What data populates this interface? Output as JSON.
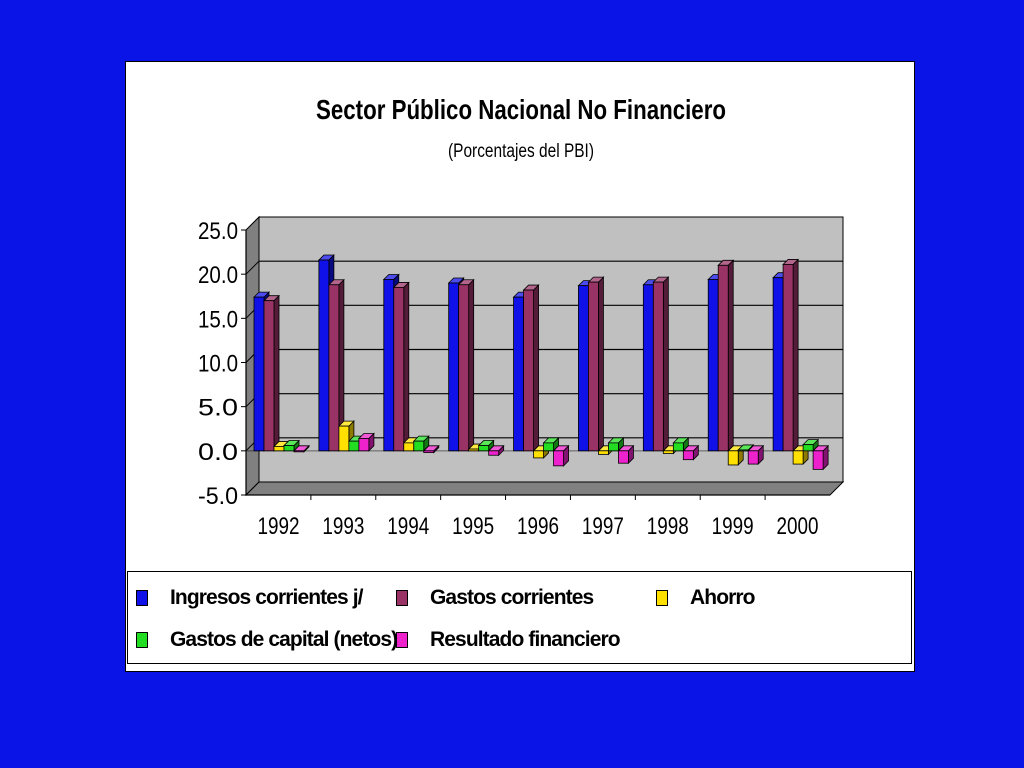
{
  "chart_data": {
    "type": "bar",
    "title": "Sector Público Nacional No Financiero",
    "subtitle": "(Porcentajes del PBI)",
    "categories": [
      "1992",
      "1993",
      "1994",
      "1995",
      "1996",
      "1997",
      "1998",
      "1999",
      "2000"
    ],
    "ylim": [
      -5,
      25
    ],
    "yticks": [
      "25.0",
      "20.0",
      "15.0",
      "10.0",
      "5.0",
      "0.0",
      "-5.0"
    ],
    "grid": true,
    "legend_position": "bottom",
    "series": [
      {
        "name": "Ingresos corrientes j/",
        "color": "#1010e8",
        "values": [
          17.4,
          21.6,
          19.4,
          19.0,
          17.4,
          18.7,
          18.8,
          19.4,
          19.6
        ]
      },
      {
        "name": "Gastos corrientes",
        "color": "#993366",
        "values": [
          17.0,
          18.8,
          18.5,
          18.8,
          18.2,
          19.1,
          19.1,
          21.0,
          21.1
        ]
      },
      {
        "name": "Ahorro",
        "color": "#ffe000",
        "values": [
          0.5,
          2.8,
          0.9,
          0.2,
          -0.8,
          -0.4,
          -0.3,
          -1.6,
          -1.5
        ]
      },
      {
        "name": "Gastos de capital (netos)",
        "color": "#22dd22",
        "values": [
          0.6,
          1.1,
          1.1,
          0.6,
          0.9,
          0.9,
          0.9,
          0.1,
          0.7
        ]
      },
      {
        "name": "Resultado financiero",
        "color": "#ee22cc",
        "values": [
          -0.1,
          1.4,
          -0.2,
          -0.5,
          -1.7,
          -1.4,
          -1.0,
          -1.5,
          -2.1
        ]
      }
    ]
  }
}
